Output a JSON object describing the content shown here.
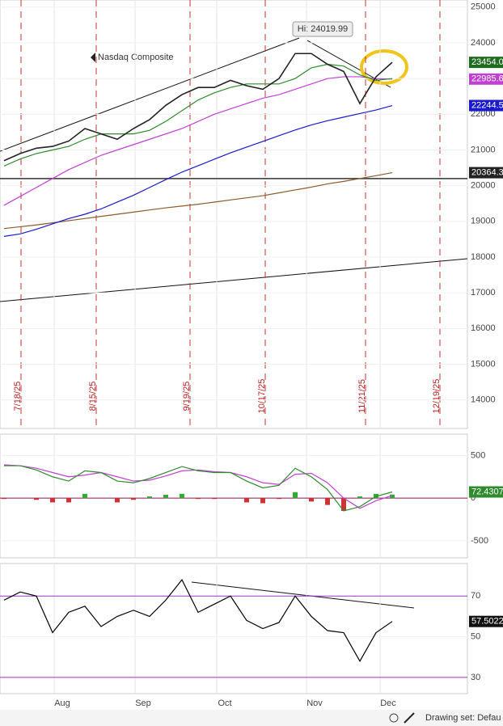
{
  "chart_data": {
    "type": "line",
    "title": "Nasdaq Composite",
    "annotation": "Hi: 24019.99",
    "markers": [
      "7/18/25",
      "8/15/25",
      "9/19/25",
      "10/17/25",
      "11/21/25",
      "12/19/25"
    ],
    "months": [
      "Aug",
      "Sep",
      "Oct",
      "Nov",
      "Dec"
    ],
    "ylim": [
      13200,
      25200
    ],
    "yticks": [
      25000,
      24000,
      23000,
      22000,
      21000,
      20000,
      19000,
      18000,
      17000,
      16000,
      15000,
      14000
    ],
    "level": 20200,
    "series": [
      {
        "name": "Price",
        "color": "#222222",
        "last_label": "23454.0",
        "label_color": "#1f6b1f",
        "values": [
          20700,
          20900,
          21050,
          21100,
          21250,
          21600,
          21450,
          21300,
          21600,
          21850,
          22250,
          22550,
          22750,
          22750,
          22950,
          22800,
          22700,
          23000,
          23700,
          23700,
          23400,
          23200,
          22300,
          23050,
          23454
        ]
      },
      {
        "name": "MA20",
        "color": "#2e8b2e",
        "last_label": null,
        "label_color": null,
        "values": [
          20550,
          20750,
          20900,
          21000,
          21100,
          21300,
          21450,
          21450,
          21450,
          21550,
          21800,
          22100,
          22400,
          22600,
          22750,
          22850,
          22850,
          22850,
          23000,
          23300,
          23400,
          23350,
          23100,
          22950,
          23000
        ]
      },
      {
        "name": "MA50",
        "color": "#c040d0",
        "last_label": "22985.6",
        "label_color": "#c040d0",
        "values": [
          19450,
          19700,
          19950,
          20200,
          20450,
          20650,
          20850,
          21000,
          21150,
          21300,
          21450,
          21600,
          21800,
          22000,
          22150,
          22300,
          22450,
          22550,
          22700,
          22850,
          23000,
          23050,
          23050,
          23000,
          22985.6
        ]
      },
      {
        "name": "MA100",
        "color": "#1a1acc",
        "last_label": "22244.5",
        "label_color": "#1a1acc",
        "values": [
          18580,
          18650,
          18780,
          18930,
          19080,
          19200,
          19350,
          19540,
          19730,
          19950,
          20170,
          20380,
          20560,
          20740,
          20920,
          21080,
          21240,
          21400,
          21560,
          21700,
          21820,
          21920,
          22020,
          22120,
          22244.5
        ]
      },
      {
        "name": "MA200",
        "color": "#8b5a2b",
        "last_label": "20364.3",
        "label_color": "#222222",
        "values": [
          18800,
          18850,
          18900,
          18960,
          19020,
          19080,
          19140,
          19200,
          19260,
          19320,
          19380,
          19430,
          19480,
          19540,
          19600,
          19660,
          19720,
          19800,
          19880,
          19960,
          20050,
          20120,
          20200,
          20280,
          20364.3
        ]
      }
    ],
    "macd": {
      "ylim": [
        -700,
        750
      ],
      "yticks": [
        500,
        0,
        -500
      ],
      "line": {
        "color": "#2e8b2e",
        "last_label": "72.4307",
        "values": [
          380,
          380,
          330,
          250,
          200,
          320,
          300,
          200,
          180,
          230,
          300,
          370,
          320,
          300,
          300,
          200,
          120,
          150,
          350,
          250,
          100,
          -150,
          -100,
          20,
          72.4307
        ]
      },
      "signal": {
        "color": "#c040d0",
        "values": [
          390,
          380,
          350,
          300,
          250,
          270,
          300,
          250,
          200,
          210,
          260,
          320,
          330,
          310,
          300,
          250,
          180,
          160,
          280,
          290,
          180,
          0,
          -120,
          -30,
          30
        ]
      },
      "histogram": [
        -10,
        0,
        -20,
        -50,
        -50,
        50,
        0,
        -50,
        -20,
        20,
        40,
        50,
        -10,
        -10,
        0,
        -50,
        -60,
        -10,
        70,
        -40,
        -80,
        -150,
        20,
        50,
        42
      ]
    },
    "rsi": {
      "ylim": [
        22,
        86
      ],
      "yticks": [
        70,
        50,
        30
      ],
      "color": "#000000",
      "last_label": "57.5022",
      "values": [
        68,
        72,
        70,
        52,
        62,
        65,
        55,
        60,
        63,
        60,
        68,
        78,
        62,
        66,
        70,
        58,
        54,
        57,
        70,
        60,
        53,
        52,
        38,
        52,
        57.5022
      ]
    },
    "toolbar": "Drawing set: Defau"
  }
}
